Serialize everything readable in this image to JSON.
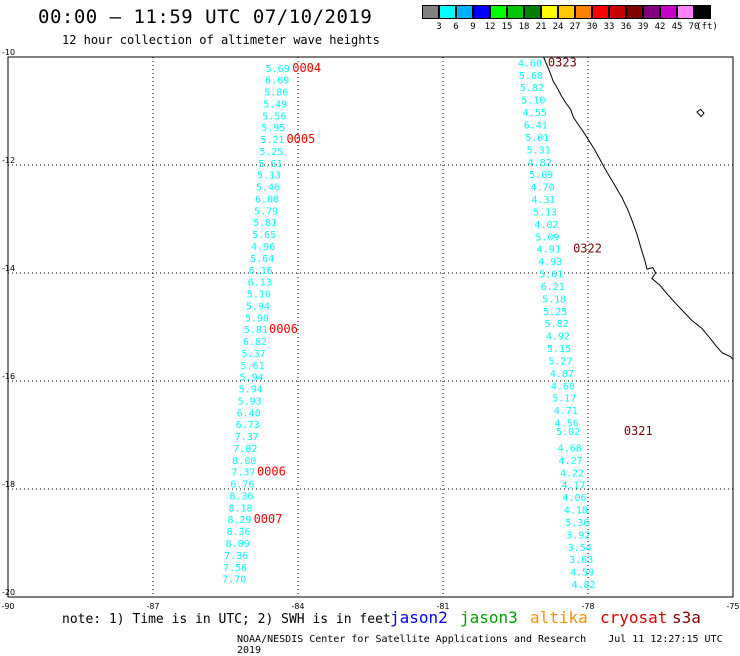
{
  "header": {
    "title": "00:00 – 11:59 UTC 07/10/2019",
    "subtitle": "12 hour collection of altimeter wave heights"
  },
  "legend": {
    "colors": [
      "#808080",
      "#00ffff",
      "#00b0ff",
      "#0000ff",
      "#00ff00",
      "#00c800",
      "#008000",
      "#ffff00",
      "#ffc800",
      "#ff8000",
      "#ff0000",
      "#c80000",
      "#800000",
      "#800080",
      "#c800c8",
      "#ff80ff",
      "#000000"
    ],
    "labels": [
      "3",
      "6",
      "9",
      "12",
      "15",
      "18",
      "21",
      "24",
      "27",
      "30",
      "33",
      "36",
      "39",
      "42",
      "45",
      "70",
      "(ft)"
    ]
  },
  "footer": {
    "note": "note: 1) Time is in UTC; 2) SWH is in feet",
    "credit": "NOAA/NESDIS Center for Satellite Applications and Research",
    "timestamp": "Jul 11 12:27:15 UTC 2019",
    "satellites": [
      {
        "name": "jason2",
        "color": "#0000ff"
      },
      {
        "name": "jason3",
        "color": "#00a000"
      },
      {
        "name": "altika",
        "color": "#ff9000"
      },
      {
        "name": "cryosat",
        "color": "#e00000"
      },
      {
        "name": "s3a",
        "color": "#800000"
      }
    ]
  },
  "chart_data": {
    "type": "scatter",
    "title": "12 hour collection of altimeter wave heights",
    "xlim": [
      -90,
      -75
    ],
    "ylim": [
      -20,
      -10
    ],
    "x_ticks": [
      -90,
      -87,
      -84,
      -81,
      -78,
      -75
    ],
    "y_ticks": [
      -10,
      -12,
      -14,
      -16,
      -18,
      -20
    ],
    "grid": true,
    "tracks": [
      {
        "satellite": "cryosat",
        "color": "#00ffff",
        "points": [
          {
            "lon": -84.42,
            "lat": -10.2,
            "swh": "5.69"
          },
          {
            "lon": -84.43,
            "lat": -10.42,
            "swh": "6.09"
          },
          {
            "lon": -84.45,
            "lat": -10.64,
            "swh": "5.86"
          },
          {
            "lon": -84.47,
            "lat": -10.86,
            "swh": "5.49"
          },
          {
            "lon": -84.49,
            "lat": -11.08,
            "swh": "5.56"
          },
          {
            "lon": -84.51,
            "lat": -11.3,
            "swh": "5.95"
          },
          {
            "lon": -84.53,
            "lat": -11.52,
            "swh": "5.21"
          },
          {
            "lon": -84.55,
            "lat": -11.74,
            "swh": "5.25"
          },
          {
            "lon": -84.57,
            "lat": -11.96,
            "swh": "5.61"
          },
          {
            "lon": -84.6,
            "lat": -12.18,
            "swh": "5.13"
          },
          {
            "lon": -84.62,
            "lat": -12.4,
            "swh": "5.46"
          },
          {
            "lon": -84.64,
            "lat": -12.62,
            "swh": "6.08"
          },
          {
            "lon": -84.66,
            "lat": -12.84,
            "swh": "5.79"
          },
          {
            "lon": -84.68,
            "lat": -13.06,
            "swh": "5.81"
          },
          {
            "lon": -84.7,
            "lat": -13.28,
            "swh": "5.65"
          },
          {
            "lon": -84.72,
            "lat": -13.5,
            "swh": "4.96"
          },
          {
            "lon": -84.74,
            "lat": -13.72,
            "swh": "5.64"
          },
          {
            "lon": -84.77,
            "lat": -13.94,
            "swh": "6.16"
          },
          {
            "lon": -84.79,
            "lat": -14.16,
            "swh": "6.13"
          },
          {
            "lon": -84.81,
            "lat": -14.38,
            "swh": "5.10"
          },
          {
            "lon": -84.83,
            "lat": -14.6,
            "swh": "5.94"
          },
          {
            "lon": -84.85,
            "lat": -14.82,
            "swh": "5.90"
          },
          {
            "lon": -84.87,
            "lat": -15.04,
            "swh": "5.81"
          },
          {
            "lon": -84.89,
            "lat": -15.26,
            "swh": "6.82"
          },
          {
            "lon": -84.92,
            "lat": -15.48,
            "swh": "5.37"
          },
          {
            "lon": -84.94,
            "lat": -15.7,
            "swh": "5.61"
          },
          {
            "lon": -84.96,
            "lat": -15.92,
            "swh": "5.94"
          },
          {
            "lon": -84.98,
            "lat": -16.14,
            "swh": "5.94"
          },
          {
            "lon": -85.0,
            "lat": -16.36,
            "swh": "5.93"
          },
          {
            "lon": -85.02,
            "lat": -16.58,
            "swh": "6.40"
          },
          {
            "lon": -85.04,
            "lat": -16.8,
            "swh": "6.73"
          },
          {
            "lon": -85.06,
            "lat": -17.02,
            "swh": "7.37"
          },
          {
            "lon": -85.09,
            "lat": -17.24,
            "swh": "7.02"
          },
          {
            "lon": -85.11,
            "lat": -17.46,
            "swh": "8.00"
          },
          {
            "lon": -85.13,
            "lat": -17.68,
            "swh": "7.37"
          },
          {
            "lon": -85.15,
            "lat": -17.9,
            "swh": "6.76"
          },
          {
            "lon": -85.17,
            "lat": -18.12,
            "swh": "8.36"
          },
          {
            "lon": -85.19,
            "lat": -18.34,
            "swh": "8.18"
          },
          {
            "lon": -85.21,
            "lat": -18.56,
            "swh": "8.29"
          },
          {
            "lon": -85.23,
            "lat": -18.78,
            "swh": "8.36"
          },
          {
            "lon": -85.25,
            "lat": -19.0,
            "swh": "8.09"
          },
          {
            "lon": -85.28,
            "lat": -19.22,
            "swh": "7.36"
          },
          {
            "lon": -85.3,
            "lat": -19.44,
            "swh": "7.56"
          },
          {
            "lon": -85.32,
            "lat": -19.66,
            "swh": "7.70"
          }
        ],
        "time_labels": [
          {
            "lon": -83.82,
            "lat": -10.2,
            "text": "0004"
          },
          {
            "lon": -83.94,
            "lat": -11.52,
            "text": "0005"
          },
          {
            "lon": -84.3,
            "lat": -15.04,
            "text": "0006"
          },
          {
            "lon": -84.55,
            "lat": -17.68,
            "text": "0006"
          },
          {
            "lon": -84.62,
            "lat": -18.56,
            "text": "0007"
          }
        ]
      },
      {
        "satellite": "s3a",
        "color": "#00ffff",
        "points": [
          {
            "lon": -79.2,
            "lat": -10.1,
            "swh": "4.60"
          },
          {
            "lon": -79.18,
            "lat": -10.33,
            "swh": "5.68"
          },
          {
            "lon": -79.16,
            "lat": -10.56,
            "swh": "5.82"
          },
          {
            "lon": -79.13,
            "lat": -10.79,
            "swh": "5.10"
          },
          {
            "lon": -79.1,
            "lat": -11.02,
            "swh": "4.55"
          },
          {
            "lon": -79.08,
            "lat": -11.25,
            "swh": "6.41"
          },
          {
            "lon": -79.05,
            "lat": -11.48,
            "swh": "5.01"
          },
          {
            "lon": -79.02,
            "lat": -11.71,
            "swh": "5.31"
          },
          {
            "lon": -79.0,
            "lat": -11.94,
            "swh": "4.82"
          },
          {
            "lon": -78.97,
            "lat": -12.17,
            "swh": "5.09"
          },
          {
            "lon": -78.94,
            "lat": -12.4,
            "swh": "4.70"
          },
          {
            "lon": -78.92,
            "lat": -12.63,
            "swh": "4.31"
          },
          {
            "lon": -78.89,
            "lat": -12.86,
            "swh": "5.13"
          },
          {
            "lon": -78.86,
            "lat": -13.09,
            "swh": "4.02"
          },
          {
            "lon": -78.84,
            "lat": -13.32,
            "swh": "5.09"
          },
          {
            "lon": -78.81,
            "lat": -13.55,
            "swh": "4.91"
          },
          {
            "lon": -78.78,
            "lat": -13.78,
            "swh": "4.93"
          },
          {
            "lon": -78.76,
            "lat": -14.01,
            "swh": "5.61"
          },
          {
            "lon": -78.73,
            "lat": -14.24,
            "swh": "6.21"
          },
          {
            "lon": -78.7,
            "lat": -14.47,
            "swh": "5.18"
          },
          {
            "lon": -78.68,
            "lat": -14.7,
            "swh": "5.25"
          },
          {
            "lon": -78.65,
            "lat": -14.93,
            "swh": "5.82"
          },
          {
            "lon": -78.62,
            "lat": -15.16,
            "swh": "4.92"
          },
          {
            "lon": -78.6,
            "lat": -15.39,
            "swh": "5.15"
          },
          {
            "lon": -78.57,
            "lat": -15.62,
            "swh": "5.27"
          },
          {
            "lon": -78.54,
            "lat": -15.85,
            "swh": "4.87"
          },
          {
            "lon": -78.52,
            "lat": -16.08,
            "swh": "4.60"
          },
          {
            "lon": -78.49,
            "lat": -16.31,
            "swh": "5.17"
          },
          {
            "lon": -78.46,
            "lat": -16.54,
            "swh": "4.71"
          },
          {
            "lon": -78.44,
            "lat": -16.77,
            "swh": "4.56"
          },
          {
            "lon": -78.41,
            "lat": -16.93,
            "swh": "5.02"
          },
          {
            "lon": -78.38,
            "lat": -17.23,
            "swh": "4.68"
          },
          {
            "lon": -78.36,
            "lat": -17.46,
            "swh": "4.27"
          },
          {
            "lon": -78.33,
            "lat": -17.69,
            "swh": "4.22"
          },
          {
            "lon": -78.3,
            "lat": -17.92,
            "swh": "4.17"
          },
          {
            "lon": -78.28,
            "lat": -18.15,
            "swh": "4.06"
          },
          {
            "lon": -78.25,
            "lat": -18.38,
            "swh": "4.18"
          },
          {
            "lon": -78.22,
            "lat": -18.61,
            "swh": "5.36"
          },
          {
            "lon": -78.2,
            "lat": -18.84,
            "swh": "3.92"
          },
          {
            "lon": -78.17,
            "lat": -19.07,
            "swh": "3.54"
          },
          {
            "lon": -78.14,
            "lat": -19.3,
            "swh": "3.63"
          },
          {
            "lon": -78.12,
            "lat": -19.53,
            "swh": "4.59"
          },
          {
            "lon": -78.09,
            "lat": -19.76,
            "swh": "4.82"
          }
        ],
        "time_labels": [
          {
            "lon": -78.53,
            "lat": -10.1,
            "text": "0323"
          },
          {
            "lon": -78.01,
            "lat": -13.55,
            "text": "0322"
          },
          {
            "lon": -76.96,
            "lat": -16.93,
            "text": "0321"
          }
        ]
      }
    ],
    "coastline": [
      [
        -78.92,
        -10.0
      ],
      [
        -78.85,
        -10.15
      ],
      [
        -78.78,
        -10.3
      ],
      [
        -78.72,
        -10.45
      ],
      [
        -78.62,
        -10.6
      ],
      [
        -78.55,
        -10.72
      ],
      [
        -78.46,
        -10.85
      ],
      [
        -78.36,
        -10.97
      ],
      [
        -78.3,
        -11.12
      ],
      [
        -78.2,
        -11.25
      ],
      [
        -78.1,
        -11.38
      ],
      [
        -77.98,
        -11.55
      ],
      [
        -77.86,
        -11.72
      ],
      [
        -77.75,
        -11.9
      ],
      [
        -77.66,
        -12.05
      ],
      [
        -77.55,
        -12.22
      ],
      [
        -77.43,
        -12.4
      ],
      [
        -77.3,
        -12.6
      ],
      [
        -77.18,
        -12.82
      ],
      [
        -77.08,
        -13.05
      ],
      [
        -76.98,
        -13.3
      ],
      [
        -76.9,
        -13.55
      ],
      [
        -76.82,
        -13.78
      ],
      [
        -76.78,
        -13.93
      ],
      [
        -76.66,
        -13.9
      ],
      [
        -76.6,
        -14.0
      ],
      [
        -76.68,
        -14.1
      ],
      [
        -76.52,
        -14.22
      ],
      [
        -76.35,
        -14.4
      ],
      [
        -76.2,
        -14.55
      ],
      [
        -76.02,
        -14.72
      ],
      [
        -75.85,
        -14.88
      ],
      [
        -75.65,
        -15.02
      ],
      [
        -75.5,
        -15.18
      ],
      [
        -75.35,
        -15.35
      ],
      [
        -75.22,
        -15.48
      ],
      [
        -75.05,
        -15.55
      ],
      [
        -75.0,
        -15.6
      ]
    ],
    "island": [
      [
        -75.75,
        -11.02
      ],
      [
        -75.67,
        -10.97
      ],
      [
        -75.6,
        -11.04
      ],
      [
        -75.66,
        -11.1
      ],
      [
        -75.75,
        -11.02
      ]
    ]
  }
}
